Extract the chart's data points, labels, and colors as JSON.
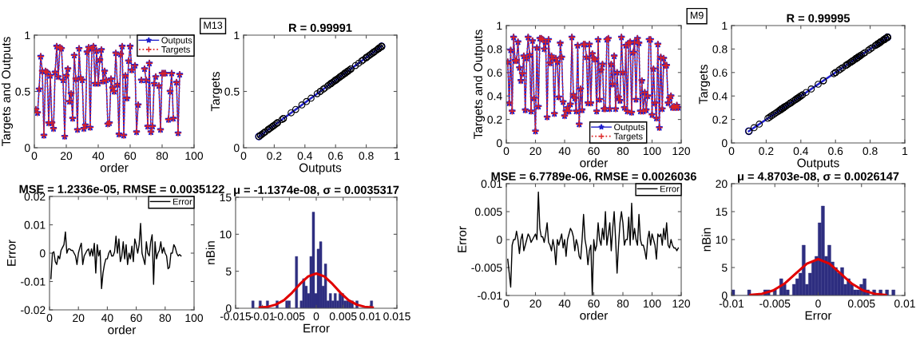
{
  "chart_data": [
    {
      "type": "line",
      "xlabel": "order",
      "ylabel": "Targets and Outputs",
      "xlim": [
        0,
        100
      ],
      "xticks": [
        0,
        20,
        40,
        60,
        80,
        100
      ],
      "ylim": [
        0,
        1
      ],
      "yticks": [
        0,
        0.5,
        1
      ],
      "legend": "top right",
      "grid": false,
      "x": [
        1,
        2,
        3,
        4,
        5,
        6,
        7,
        8,
        9,
        10,
        11,
        12,
        13,
        14,
        15,
        16,
        17,
        18,
        19,
        20,
        21,
        22,
        23,
        24,
        25,
        26,
        27,
        28,
        29,
        30,
        31,
        32,
        33,
        34,
        35,
        36,
        37,
        38,
        39,
        40,
        41,
        42,
        43,
        44,
        45,
        46,
        47,
        48,
        49,
        50,
        51,
        52,
        53,
        54,
        55,
        56,
        57,
        58,
        59,
        60,
        61,
        62,
        63,
        64,
        65,
        66,
        67,
        68,
        69,
        70,
        71,
        72,
        73,
        74,
        75,
        76,
        77,
        78,
        79,
        80,
        81,
        82,
        83,
        84,
        85,
        86,
        87,
        88,
        89,
        90,
        91
      ],
      "series": [
        {
          "name": "Outputs",
          "color": "#1f1fcc",
          "marker": "star",
          "line_style": "solid",
          "values": [
            0.34,
            0.31,
            0.52,
            0.81,
            0.68,
            0.11,
            0.68,
            0.67,
            0.22,
            0.64,
            0.22,
            0.17,
            0.67,
            0.9,
            0.63,
            0.89,
            0.88,
            0.6,
            0.1,
            0.64,
            0.7,
            0.41,
            0.48,
            0.26,
            0.82,
            0.61,
            0.16,
            0.88,
            0.62,
            0.6,
            0.17,
            0.2,
            0.85,
            0.89,
            0.18,
            0.88,
            0.9,
            0.57,
            0.86,
            0.57,
            0.78,
            0.87,
            0.59,
            0.68,
            0.6,
            0.21,
            0.22,
            0.61,
            0.53,
            0.5,
            0.84,
            0.56,
            0.12,
            0.83,
            0.9,
            0.11,
            0.64,
            0.44,
            0.77,
            0.9,
            0.69,
            null,
            0.73,
            0.14,
            0.38,
            null,
            0.6,
            null,
            0.7,
            0.6,
            0.19,
            0.75,
            0.14,
            0.19,
            0.57,
            0.63,
            null,
            0.55,
            0.16,
            0.66,
            0.66,
            0.66,
            null,
            0.25,
            0.5,
            0.66,
            0.26,
            null,
            0.58,
            0.13,
            0.65
          ]
        },
        {
          "name": "Targets",
          "color": "#dd2222",
          "marker": "cross",
          "line_style": "dotted",
          "values": [
            0.34,
            0.31,
            0.52,
            0.81,
            0.68,
            0.11,
            0.68,
            0.67,
            0.22,
            0.64,
            0.22,
            0.17,
            0.67,
            0.9,
            0.63,
            0.89,
            0.88,
            0.6,
            0.1,
            0.64,
            0.7,
            0.41,
            0.48,
            0.26,
            0.82,
            0.61,
            0.16,
            0.88,
            0.62,
            0.6,
            0.17,
            0.2,
            0.85,
            0.89,
            0.18,
            0.88,
            0.9,
            0.57,
            0.86,
            0.57,
            0.78,
            0.87,
            0.59,
            0.68,
            0.6,
            0.21,
            0.22,
            0.61,
            0.53,
            0.5,
            0.84,
            0.56,
            0.12,
            0.83,
            0.9,
            0.11,
            0.64,
            0.44,
            0.77,
            0.9,
            0.69,
            null,
            0.73,
            0.14,
            0.38,
            null,
            0.6,
            null,
            0.7,
            0.6,
            0.19,
            0.75,
            0.14,
            0.19,
            0.57,
            0.63,
            null,
            0.55,
            0.16,
            0.66,
            0.66,
            0.66,
            null,
            0.25,
            0.5,
            0.66,
            0.26,
            null,
            0.58,
            0.13,
            0.65
          ]
        }
      ]
    },
    {
      "type": "scatter",
      "title": "R = 0.99991",
      "xlabel": "Outputs",
      "ylabel": "Targets",
      "xlim": [
        0,
        1
      ],
      "xticks": [
        0,
        0.2,
        0.4,
        0.6,
        0.8,
        1
      ],
      "ylim": [
        0,
        1
      ],
      "yticks": [
        0,
        0.5,
        1
      ],
      "marker": "circle",
      "grid": false,
      "annotations": [
        "M13"
      ],
      "series": [
        {
          "color": "#000000",
          "x": [
            0.34,
            0.31,
            0.52,
            0.81,
            0.68,
            0.11,
            0.68,
            0.67,
            0.22,
            0.64,
            0.22,
            0.17,
            0.67,
            0.9,
            0.63,
            0.89,
            0.88,
            0.6,
            0.1,
            0.64,
            0.7,
            0.41,
            0.48,
            0.26,
            0.82,
            0.61,
            0.16,
            0.88,
            0.62,
            0.6,
            0.17,
            0.2,
            0.85,
            0.89,
            0.18,
            0.88,
            0.9,
            0.57,
            0.86,
            0.57,
            0.78,
            0.87,
            0.59,
            0.68,
            0.6,
            0.21,
            0.22,
            0.61,
            0.53,
            0.5,
            0.84,
            0.56,
            0.12,
            0.83,
            0.9,
            0.11,
            0.64,
            0.44,
            0.77,
            0.9,
            0.69,
            0.8,
            0.73,
            0.14,
            0.38,
            0.85,
            0.6,
            0.88,
            0.7,
            0.6,
            0.19,
            0.75,
            0.14,
            0.19,
            0.57,
            0.63,
            0.8,
            0.55,
            0.16,
            0.66,
            0.66,
            0.66,
            0.85,
            0.25,
            0.5,
            0.66,
            0.26,
            0.8,
            0.58,
            0.13,
            0.65
          ],
          "values": [
            0.34,
            0.31,
            0.52,
            0.81,
            0.68,
            0.11,
            0.68,
            0.67,
            0.22,
            0.64,
            0.22,
            0.17,
            0.67,
            0.9,
            0.63,
            0.89,
            0.88,
            0.6,
            0.1,
            0.64,
            0.7,
            0.41,
            0.48,
            0.26,
            0.82,
            0.61,
            0.16,
            0.88,
            0.62,
            0.6,
            0.17,
            0.2,
            0.85,
            0.89,
            0.18,
            0.88,
            0.9,
            0.57,
            0.86,
            0.57,
            0.78,
            0.87,
            0.59,
            0.68,
            0.6,
            0.21,
            0.22,
            0.61,
            0.53,
            0.5,
            0.84,
            0.56,
            0.12,
            0.83,
            0.9,
            0.11,
            0.64,
            0.44,
            0.77,
            0.9,
            0.69,
            0.8,
            0.73,
            0.14,
            0.38,
            0.85,
            0.6,
            0.88,
            0.7,
            0.6,
            0.19,
            0.75,
            0.14,
            0.19,
            0.57,
            0.63,
            0.8,
            0.55,
            0.16,
            0.66,
            0.66,
            0.66,
            0.85,
            0.25,
            0.5,
            0.66,
            0.26,
            0.8,
            0.58,
            0.13,
            0.65
          ]
        },
        {
          "type": "line",
          "color": "#1f1fcc",
          "x": [
            0.1,
            0.9
          ],
          "values": [
            0.1,
            0.9
          ]
        }
      ]
    },
    {
      "type": "line",
      "title": "MSE = 1.2336e-05, RMSE = 0.0035122",
      "xlabel": "order",
      "ylabel": "Error",
      "xlim": [
        0,
        100
      ],
      "xticks": [
        0,
        20,
        40,
        60,
        80,
        100
      ],
      "ylim": [
        -0.02,
        0.02
      ],
      "yticks": [
        -0.02,
        -0.01,
        0,
        0.01,
        0.02
      ],
      "legend": "top right",
      "grid": false,
      "x": [
        1,
        2,
        3,
        4,
        5,
        6,
        7,
        8,
        9,
        10,
        11,
        12,
        13,
        14,
        15,
        16,
        17,
        18,
        19,
        20,
        21,
        22,
        23,
        24,
        25,
        26,
        27,
        28,
        29,
        30,
        31,
        32,
        33,
        34,
        35,
        36,
        37,
        38,
        39,
        40,
        41,
        42,
        43,
        44,
        45,
        46,
        47,
        48,
        49,
        50,
        51,
        52,
        53,
        54,
        55,
        56,
        57,
        58,
        59,
        60,
        61,
        62,
        63,
        64,
        65,
        66,
        67,
        68,
        69,
        70,
        71,
        72,
        73,
        74,
        75,
        76,
        77,
        78,
        79,
        80,
        81,
        82,
        83,
        84,
        85,
        86,
        87,
        88,
        89,
        90,
        91
      ],
      "series": [
        {
          "name": "Error",
          "color": "#000000",
          "values": [
            -0.009,
            0,
            0.0005,
            -0.003,
            -0.004,
            -0.001,
            -0.002,
            0.001,
            0.002,
            0.003,
            0.0075,
            0,
            0.0015,
            0.0015,
            0.001,
            0.001,
            0,
            -0.001,
            -0.004,
            0,
            0.002,
            0.0035,
            -0.004,
            -0.001,
            0,
            0.001,
            0.0015,
            -0.001,
            0.0015,
            -0.001,
            0.0035,
            -0.007,
            0.003,
            -0.001,
            0.001,
            -0.0125,
            -0.007,
            -0.004,
            -0.002,
            -0.002,
            0,
            0.001,
            -0.001,
            -0.001,
            0.0005,
            0.006,
            0,
            0.005,
            -0.003,
            -0.001,
            0.004,
            -0.002,
            0.003,
            -0.004,
            0,
            -0.002,
            0.0025,
            -0.003,
            0.005,
            0.003,
            0,
            0.003,
            0.0105,
            0,
            -0.002,
            -0.004,
            0.004,
            0,
            -0.001,
            0.004,
            0.0065,
            -0.011,
            0.004,
            -0.002,
            0,
            0.001,
            0.004,
            0,
            0.002,
            0,
            -0.001,
            -0.0055,
            -0.005,
            0,
            0,
            0.003,
            0.002,
            0,
            -0.001,
            -0.0005,
            -0.001
          ]
        }
      ]
    },
    {
      "type": "histogram",
      "title": "μ = -1.1374e-08, σ = 0.0035317",
      "xlabel": "Error",
      "ylabel": "nBin",
      "xlim": [
        -0.015,
        0.015
      ],
      "xticks": [
        -0.015,
        -0.01,
        -0.005,
        0,
        0.005,
        0.01,
        0.015
      ],
      "ylim": [
        0,
        15
      ],
      "yticks": [
        0,
        5,
        10,
        15
      ],
      "grid": false,
      "series": [
        {
          "color": "#2e2e80",
          "bins": [
            -0.012,
            -0.01155,
            -0.0111,
            -0.01065,
            -0.0102,
            -0.00975,
            -0.0093,
            -0.00885,
            -0.0084,
            -0.00795,
            -0.0075,
            -0.00705,
            -0.0066,
            -0.00615,
            -0.0057,
            -0.00525,
            -0.0048,
            -0.00435,
            -0.0039,
            -0.00345,
            -0.003,
            -0.00255,
            -0.0021,
            -0.00165,
            -0.0012,
            -0.00075,
            -0.0003,
            0.00015,
            0.0006,
            0.00105,
            0.0015,
            0.00195,
            0.0024,
            0.00285,
            0.0033,
            0.00375,
            0.0042,
            0.00465,
            0.0051,
            0.00555,
            0.006,
            0.00645,
            0.0069,
            0.00735,
            0.0078,
            0.00825,
            0.0087,
            0.00915,
            0.0096,
            0.01005,
            0.0105
          ],
          "values": [
            1,
            0,
            0,
            1,
            0,
            0,
            1,
            0,
            0,
            0,
            1,
            0,
            0,
            0,
            1,
            1,
            0,
            0,
            7,
            0,
            1,
            4,
            3,
            2,
            7,
            13,
            2,
            8,
            9,
            3,
            6,
            1,
            2,
            1,
            2,
            1,
            2,
            2,
            1,
            1,
            1,
            1,
            0,
            1,
            0,
            0,
            0,
            0,
            0,
            1
          ]
        },
        {
          "type": "line",
          "color": "#e00000",
          "x": [
            -0.0105,
            -0.009,
            -0.0075,
            -0.006,
            -0.0045,
            -0.003,
            -0.0015,
            0,
            0.0015,
            0.003,
            0.0045,
            0.006,
            0.0075,
            0.009,
            0.0105
          ],
          "values": [
            0.1,
            0.2,
            0.5,
            1.1,
            2.1,
            3.3,
            4.3,
            4.7,
            4.3,
            3.3,
            2.1,
            1.1,
            0.5,
            0.2,
            0.1
          ]
        }
      ]
    },
    {
      "type": "line",
      "xlabel": "order",
      "ylabel": "Targets and Outputs",
      "xlim": [
        0,
        120
      ],
      "xticks": [
        0,
        20,
        40,
        60,
        80,
        100,
        120
      ],
      "ylim": [
        0,
        1
      ],
      "yticks": [
        0,
        0.2,
        0.4,
        0.6,
        0.8,
        1
      ],
      "legend": "bottom",
      "grid": false,
      "x": [
        1,
        2,
        3,
        4,
        5,
        6,
        7,
        8,
        9,
        10,
        11,
        12,
        13,
        14,
        15,
        16,
        17,
        18,
        19,
        20,
        21,
        22,
        23,
        24,
        25,
        26,
        27,
        28,
        29,
        30,
        31,
        32,
        33,
        34,
        35,
        36,
        37,
        38,
        39,
        40,
        41,
        42,
        43,
        44,
        45,
        46,
        47,
        48,
        49,
        50,
        51,
        52,
        53,
        54,
        55,
        56,
        57,
        58,
        59,
        60,
        61,
        62,
        63,
        64,
        65,
        66,
        67,
        68,
        69,
        70,
        71,
        72,
        73,
        74,
        75,
        76,
        77,
        78,
        79,
        80,
        81,
        82,
        83,
        84,
        85,
        86,
        87,
        88,
        89,
        90,
        91,
        92,
        93,
        94,
        95,
        96,
        97,
        98,
        99,
        100,
        101,
        102,
        103,
        104,
        105,
        106,
        107,
        108,
        109,
        110,
        111,
        112,
        113,
        114,
        115,
        116,
        117,
        118
      ],
      "series": [
        {
          "name": "Outputs",
          "color": "#1f1fcc",
          "marker": "star",
          "line_style": "solid",
          "values": [
            0.69,
            0.34,
            0.79,
            0.27,
            0.9,
            0.7,
            0.7,
            0.86,
            0.64,
            0.53,
            0.59,
            0.74,
            0.28,
            0.72,
            0.9,
            0.75,
            0.27,
            0.87,
            0.38,
            0.1,
            0.81,
            0.31,
            0.89,
            0.89,
            0.88,
            0.8,
            0.86,
            0.22,
            0.88,
            0.68,
            0.74,
            0.72,
            0.25,
            0.72,
            0.69,
            0.39,
            0.85,
            0.73,
            0.35,
            0.23,
            0.27,
            0.3,
            0.27,
            0.33,
            0.9,
            0.41,
            0.38,
            0.27,
            0.83,
            0.16,
            0.46,
            0.28,
            0.84,
            0.84,
            0.73,
            0.34,
            0.84,
            0.34,
            0.76,
            0.72,
            0.71,
            0.27,
            0.88,
            0.37,
            0.62,
            0.67,
            0.29,
            0.29,
            0.88,
            0.89,
            0.29,
            0.67,
            0.5,
            0.74,
            0.29,
            0.6,
            0.39,
            0.36,
            0.9,
            0.6,
            0.3,
            0.83,
            0.27,
            0.85,
            0.86,
            0.26,
            0.77,
            0.86,
            0.37,
            0.89,
            0.85,
            0.27,
            0.53,
            0.27,
            0.43,
            0.28,
            0.4,
            0.88,
            0.88,
            0.24,
            0.63,
            0.34,
            0.21,
            0.84,
            0.13,
            0.73,
            0.29,
            0.72,
            0.66,
            0.66,
            0.34,
            0.38,
            0.4,
            0.3,
            0.31,
            0.3,
            0.32,
            0.3
          ]
        },
        {
          "name": "Targets",
          "color": "#dd2222",
          "marker": "cross",
          "line_style": "dotted",
          "values": [
            0.69,
            0.34,
            0.79,
            0.27,
            0.9,
            0.7,
            0.7,
            0.86,
            0.64,
            0.53,
            0.59,
            0.74,
            0.28,
            0.72,
            0.9,
            0.75,
            0.27,
            0.87,
            0.38,
            0.1,
            0.81,
            0.31,
            0.89,
            0.89,
            0.88,
            0.8,
            0.86,
            0.22,
            0.88,
            0.68,
            0.74,
            0.72,
            0.25,
            0.72,
            0.69,
            0.39,
            0.85,
            0.73,
            0.35,
            0.23,
            0.27,
            0.3,
            0.27,
            0.33,
            0.9,
            0.41,
            0.38,
            0.27,
            0.83,
            0.16,
            0.46,
            0.28,
            0.84,
            0.84,
            0.73,
            0.34,
            0.84,
            0.34,
            0.76,
            0.72,
            0.71,
            0.27,
            0.88,
            0.37,
            0.62,
            0.67,
            0.29,
            0.29,
            0.88,
            0.89,
            0.29,
            0.67,
            0.5,
            0.74,
            0.29,
            0.6,
            0.39,
            0.36,
            0.9,
            0.6,
            0.3,
            0.83,
            0.27,
            0.85,
            0.86,
            0.26,
            0.77,
            0.86,
            0.37,
            0.89,
            0.85,
            0.27,
            0.53,
            0.27,
            0.43,
            0.28,
            0.4,
            0.88,
            0.88,
            0.24,
            0.63,
            0.34,
            0.21,
            0.84,
            0.13,
            0.73,
            0.29,
            0.72,
            0.66,
            0.66,
            0.34,
            0.38,
            0.4,
            0.3,
            0.31,
            0.3,
            0.32,
            0.3
          ]
        }
      ]
    },
    {
      "type": "scatter",
      "title": "R = 0.99995",
      "xlabel": "Outputs",
      "ylabel": "Targets",
      "xlim": [
        0,
        1
      ],
      "xticks": [
        0,
        0.2,
        0.4,
        0.6,
        0.8,
        1
      ],
      "ylim": [
        0,
        1
      ],
      "yticks": [
        0,
        0.2,
        0.4,
        0.6,
        0.8,
        1
      ],
      "marker": "circle",
      "grid": false,
      "annotations": [
        "M9"
      ],
      "series": [
        {
          "color": "#000000",
          "x": [
            0.69,
            0.34,
            0.79,
            0.27,
            0.9,
            0.7,
            0.7,
            0.86,
            0.64,
            0.53,
            0.59,
            0.74,
            0.28,
            0.72,
            0.9,
            0.75,
            null,
            0.87,
            0.38,
            0.1,
            0.81,
            0.31,
            0.89,
            0.89,
            0.88,
            0.8,
            0.86,
            0.22,
            0.88,
            0.68,
            0.74,
            0.72,
            0.25,
            0.72,
            0.69,
            0.39,
            0.85,
            0.73,
            0.35,
            0.23,
            null,
            0.3,
            null,
            0.33,
            0.9,
            0.41,
            0.38,
            null,
            0.83,
            0.16,
            0.46,
            0.28,
            0.84,
            0.84,
            0.73,
            0.34,
            0.84,
            0.34,
            0.76,
            0.72,
            0.71,
            null,
            0.88,
            0.37,
            0.62,
            0.67,
            0.29,
            0.29,
            0.88,
            0.89,
            0.29,
            0.67,
            0.5,
            0.74,
            0.29,
            0.6,
            0.39,
            0.36,
            0.9,
            0.6,
            0.3,
            0.83,
            null,
            0.85,
            0.86,
            0.26,
            0.77,
            0.86,
            0.37,
            0.89,
            0.85,
            null,
            0.53,
            null,
            0.43,
            0.28,
            0.4,
            0.88,
            0.88,
            0.24,
            0.63,
            0.34,
            0.21,
            0.84,
            0.13,
            0.73,
            0.29,
            0.72,
            0.66,
            0.66,
            0.34,
            0.38,
            0.4,
            0.3,
            0.31,
            0.3,
            0.32,
            0.3
          ],
          "values": [
            0.69,
            0.34,
            0.79,
            0.27,
            0.9,
            0.7,
            0.7,
            0.86,
            0.64,
            0.53,
            0.59,
            0.74,
            0.28,
            0.72,
            0.9,
            0.75,
            null,
            0.87,
            0.38,
            0.1,
            0.81,
            0.31,
            0.89,
            0.89,
            0.88,
            0.8,
            0.86,
            0.22,
            0.88,
            0.68,
            0.74,
            0.72,
            0.25,
            0.72,
            0.69,
            0.39,
            0.85,
            0.73,
            0.35,
            0.23,
            null,
            0.3,
            null,
            0.33,
            0.9,
            0.41,
            0.38,
            null,
            0.83,
            0.16,
            0.46,
            0.28,
            0.84,
            0.84,
            0.73,
            0.34,
            0.84,
            0.34,
            0.76,
            0.72,
            0.71,
            null,
            0.88,
            0.37,
            0.62,
            0.67,
            0.29,
            0.29,
            0.88,
            0.89,
            0.29,
            0.67,
            0.5,
            0.74,
            0.29,
            0.6,
            0.39,
            0.36,
            0.9,
            0.6,
            0.3,
            0.83,
            null,
            0.85,
            0.86,
            0.26,
            0.77,
            0.86,
            0.37,
            0.89,
            0.85,
            null,
            0.53,
            null,
            0.43,
            0.28,
            0.4,
            0.88,
            0.88,
            0.24,
            0.63,
            0.34,
            0.21,
            0.84,
            0.13,
            0.73,
            0.29,
            0.72,
            0.66,
            0.66,
            0.34,
            0.38,
            0.4,
            0.3,
            0.31,
            0.3,
            0.32,
            0.3
          ]
        },
        {
          "type": "line",
          "color": "#1f1fcc",
          "x": [
            0.1,
            0.9
          ],
          "values": [
            0.1,
            0.9
          ]
        }
      ]
    },
    {
      "type": "line",
      "title": "MSE = 6.7789e-06, RMSE = 0.0026036",
      "xlabel": "order",
      "ylabel": "Error",
      "xlim": [
        0,
        120
      ],
      "xticks": [
        0,
        20,
        40,
        60,
        80,
        100,
        120
      ],
      "ylim": [
        -0.01,
        0.01
      ],
      "yticks": [
        -0.01,
        -0.005,
        0,
        0.005,
        0.01
      ],
      "legend": "top right",
      "grid": false,
      "x": [
        1,
        2,
        3,
        4,
        5,
        6,
        7,
        8,
        9,
        10,
        11,
        12,
        13,
        14,
        15,
        16,
        17,
        18,
        19,
        20,
        21,
        22,
        23,
        24,
        25,
        26,
        27,
        28,
        29,
        30,
        31,
        32,
        33,
        34,
        35,
        36,
        37,
        38,
        39,
        40,
        41,
        42,
        43,
        44,
        45,
        46,
        47,
        48,
        49,
        50,
        51,
        52,
        53,
        54,
        55,
        56,
        57,
        58,
        59,
        60,
        61,
        62,
        63,
        64,
        65,
        66,
        67,
        68,
        69,
        70,
        71,
        72,
        73,
        74,
        75,
        76,
        77,
        78,
        79,
        80,
        81,
        82,
        83,
        84,
        85,
        86,
        87,
        88,
        89,
        90,
        91,
        92,
        93,
        94,
        95,
        96,
        97,
        98,
        99,
        100,
        101,
        102,
        103,
        104,
        105,
        106,
        107,
        108,
        109,
        110,
        111,
        112,
        113,
        114,
        115,
        116,
        117,
        118
      ],
      "series": [
        {
          "name": "Error",
          "color": "#000000",
          "values": [
            -0.0035,
            -0.006,
            -0.0085,
            -0.001,
            0,
            0,
            0.0015,
            0,
            -0.0025,
            0,
            0.001,
            -0.002,
            -0.001,
            0,
            0.001,
            0.0005,
            -0.0005,
            0,
            0.0005,
            0.001,
            0,
            0.0085,
            0.002,
            0.0005,
            0.0005,
            -0.0005,
            0.001,
            0.003,
            -0.0005,
            -0.001,
            -0.002,
            0,
            -0.0015,
            -0.0045,
            0,
            -0.001,
            0,
            0.001,
            -0.0015,
            0,
            -0.003,
            0,
            0.001,
            0.002,
            0.0015,
            0.0005,
            -0.002,
            0,
            -0.001,
            -0.003,
            -0.0035,
            0,
            0.0045,
            0,
            -0.0015,
            -0.0045,
            -0.002,
            -0.001,
            -0.01,
            0,
            -0.002,
            -0.001,
            0.003,
            0,
            -0.001,
            0.002,
            0,
            0.005,
            -0.001,
            0.001,
            0.003,
            -0.002,
            0.002,
            0.005,
            0,
            -0.006,
            -0.001,
            0.003,
            0.005,
            0.003,
            -0.001,
            0,
            0,
            0.004,
            -0.001,
            0.0065,
            0,
            0.002,
            0,
            -0.001,
            0.0045,
            0,
            -0.001,
            -0.001,
            -0.002,
            -0.0035,
            0,
            0.0015,
            -0.001,
            0.001,
            0,
            -0.001,
            -0.0035,
            0.001,
            0.0005,
            0.001,
            -0.001,
            0.002,
            0,
            0.003,
            -0.001,
            -0.0015,
            0,
            -0.001,
            -0.0015,
            -0.0015,
            -0.002,
            -0.0015
          ]
        }
      ]
    },
    {
      "type": "histogram",
      "title": "μ = 4.8703e-08, σ = 0.0026147",
      "xlabel": "Error",
      "ylabel": "nBin",
      "xlim": [
        -0.01,
        0.01
      ],
      "xticks": [
        -0.01,
        -0.005,
        0,
        0.005,
        0.01
      ],
      "ylim": [
        0,
        20
      ],
      "yticks": [
        0,
        5,
        10,
        15,
        20
      ],
      "grid": false,
      "series": [
        {
          "color": "#2e2e80",
          "bins": [
            -0.01,
            -0.00963,
            -0.00926,
            -0.00889,
            -0.00852,
            -0.00815,
            -0.00778,
            -0.00741,
            -0.00704,
            -0.00667,
            -0.0063,
            -0.00593,
            -0.00556,
            -0.00519,
            -0.00482,
            -0.00445,
            -0.00408,
            -0.00371,
            -0.00334,
            -0.00297,
            -0.0026,
            -0.00223,
            -0.00186,
            -0.00149,
            -0.00112,
            -0.00075,
            -0.00038,
            -1e-05,
            0.00036,
            0.00073,
            0.0011,
            0.00147,
            0.00184,
            0.00221,
            0.00258,
            0.00295,
            0.00332,
            0.00369,
            0.00406,
            0.00443,
            0.0048,
            0.00517,
            0.00554,
            0.00591,
            0.00628,
            0.00665,
            0.00702,
            0.00739,
            0.00776,
            0.00813,
            0.0085,
            0.00887
          ],
          "values": [
            1,
            0,
            0,
            0,
            0,
            1,
            0,
            0,
            0,
            0,
            1,
            1,
            0,
            1,
            0,
            3,
            2,
            1,
            0,
            2,
            3,
            4,
            9,
            2,
            4,
            6,
            7,
            13,
            16,
            7,
            9,
            6,
            5,
            4,
            5,
            2,
            3,
            2,
            1,
            1,
            2,
            3,
            1,
            0,
            1,
            0,
            1,
            0,
            1,
            0,
            1
          ]
        },
        {
          "type": "line",
          "color": "#e00000",
          "x": [
            -0.0078,
            -0.0065,
            -0.0052,
            -0.0039,
            -0.0026,
            -0.0013,
            0,
            0.0013,
            0.0026,
            0.0039,
            0.0052,
            0.0065,
            0.0078
          ],
          "values": [
            0.1,
            0.3,
            0.9,
            2.1,
            3.9,
            5.7,
            6.5,
            5.7,
            3.9,
            2.1,
            0.9,
            0.3,
            0.1
          ]
        }
      ]
    }
  ]
}
